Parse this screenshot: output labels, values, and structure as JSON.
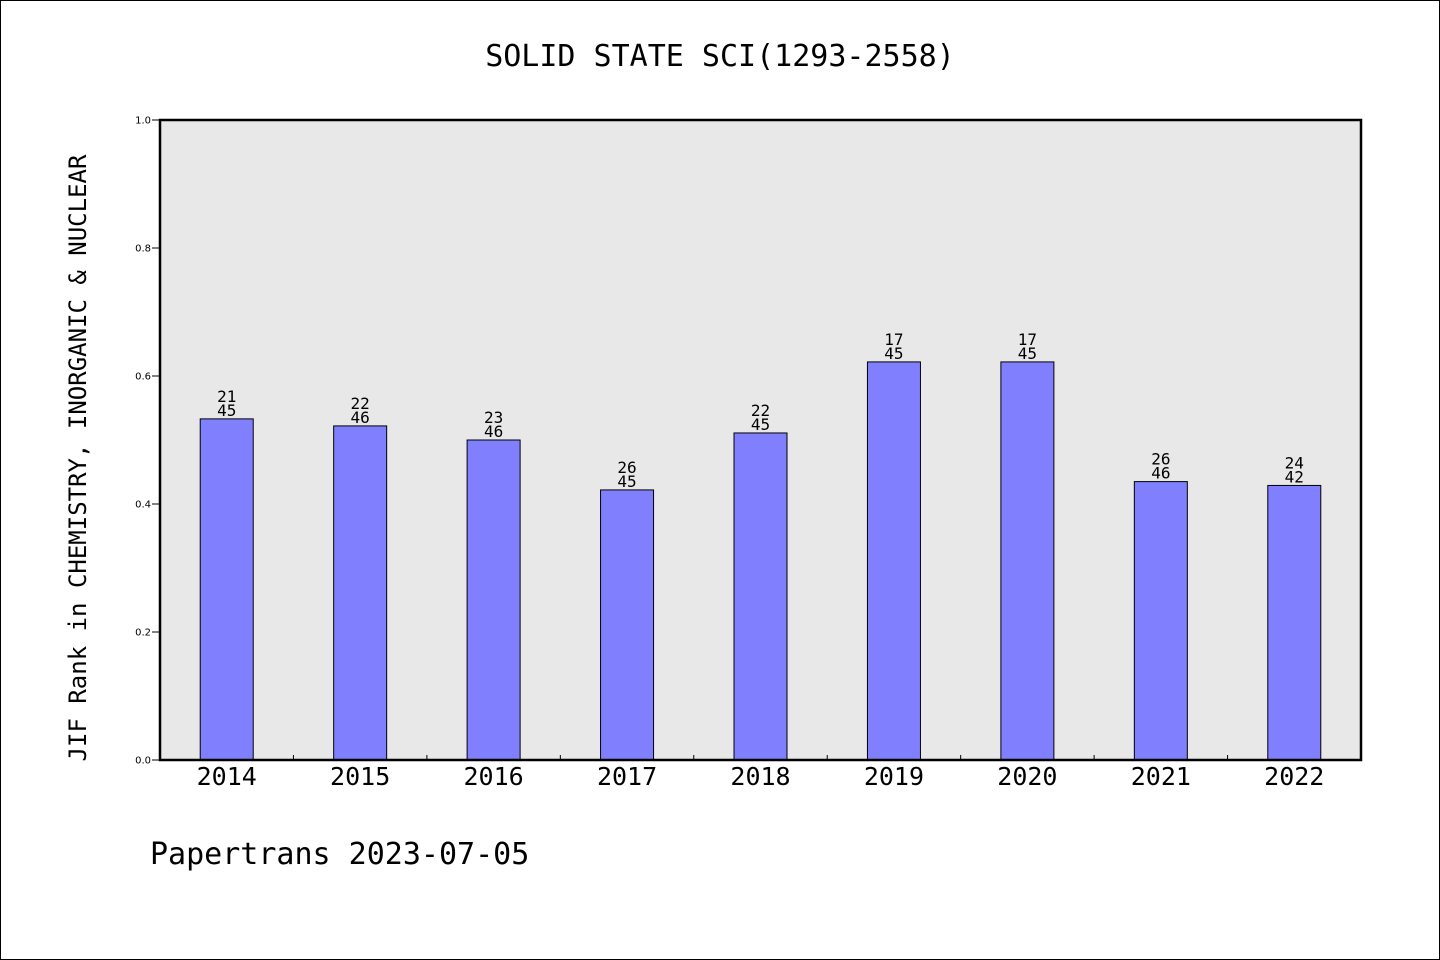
{
  "chart_data": {
    "type": "bar",
    "title": "SOLID STATE SCI(1293-2558)",
    "xlabel": "",
    "ylabel": "JIF Rank in CHEMISTRY, INORGANIC & NUCLEAR",
    "ylim": [
      0,
      1.0
    ],
    "yticks": [
      "0.0",
      "0.2",
      "0.4",
      "0.6",
      "0.8",
      "1.0"
    ],
    "grid": false,
    "categories": [
      "2014",
      "2015",
      "2016",
      "2017",
      "2018",
      "2019",
      "2020",
      "2021",
      "2022"
    ],
    "values": [
      0.533,
      0.522,
      0.5,
      0.422,
      0.511,
      0.622,
      0.622,
      0.435,
      0.429
    ],
    "bar_labels": [
      {
        "top": "21",
        "bottom": "45"
      },
      {
        "top": "22",
        "bottom": "46"
      },
      {
        "top": "23",
        "bottom": "46"
      },
      {
        "top": "26",
        "bottom": "45"
      },
      {
        "top": "22",
        "bottom": "45"
      },
      {
        "top": "17",
        "bottom": "45"
      },
      {
        "top": "17",
        "bottom": "45"
      },
      {
        "top": "26",
        "bottom": "46"
      },
      {
        "top": "24",
        "bottom": "42"
      }
    ],
    "colors": {
      "bar": "#8080ff",
      "plot_background": "#e8e8e8"
    }
  },
  "footer": {
    "text": "Papertrans 2023-07-05"
  }
}
